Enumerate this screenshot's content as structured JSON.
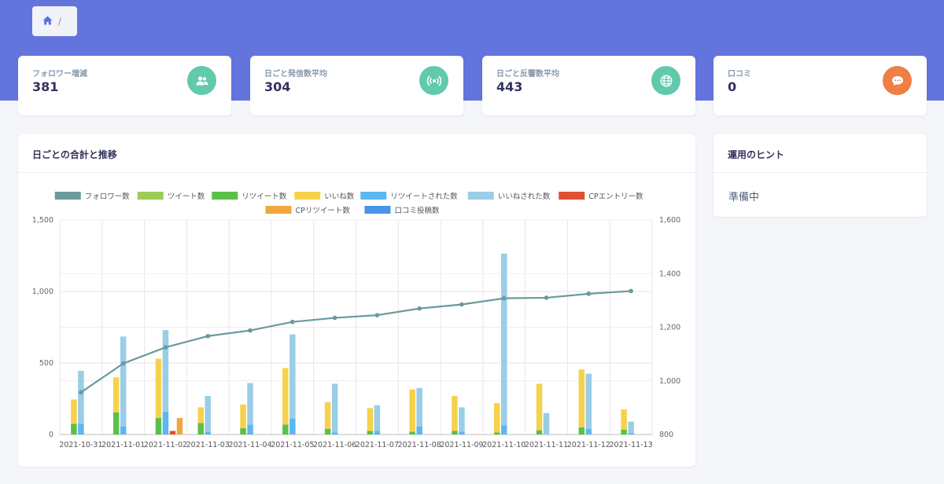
{
  "breadcrumb": {
    "home_icon": "home-icon",
    "separator": "/"
  },
  "stats": [
    {
      "label": "フォロワー増減",
      "value": "381",
      "icon": "users-icon"
    },
    {
      "label": "日ごと発信数平均",
      "value": "304",
      "icon": "broadcast-icon"
    },
    {
      "label": "日ごと反響数平均",
      "value": "443",
      "icon": "globe-icon"
    },
    {
      "label": "口コミ",
      "value": "0",
      "icon": "chat-bubble-icon"
    }
  ],
  "chart_card": {
    "title": "日ごとの合計と推移"
  },
  "hint_card": {
    "title": "運用のヒント",
    "body": "準備中"
  },
  "colors": {
    "hero": "#6375dc",
    "follower": "#6a9a9c",
    "tweet": "#9ccc56",
    "retweet": "#5bc04a",
    "like": "#f6d24b",
    "retweeted": "#5cb7f1",
    "liked": "#9acde6",
    "cp_entry": "#e05031",
    "cp_retweet": "#f0a742",
    "review": "#4b93e8"
  },
  "chart_data": {
    "type": "bar",
    "categories": [
      "2021-10-31",
      "2021-11-01",
      "2021-11-02",
      "2021-11-03",
      "2021-11-04",
      "2021-11-05",
      "2021-11-06",
      "2021-11-07",
      "2021-11-08",
      "2021-11-09",
      "2021-11-10",
      "2021-11-11",
      "2021-11-12",
      "2021-11-13"
    ],
    "y_left": {
      "min": 0,
      "max": 1500,
      "ticks": [
        "0",
        "500",
        "1,000",
        "1,500"
      ]
    },
    "y_right": {
      "min": 800,
      "max": 1600,
      "ticks": [
        "800",
        "1,000",
        "1,200",
        "1,400",
        "1,600"
      ]
    },
    "grid": true,
    "legend_position": "top",
    "series": [
      {
        "name": "フォロワー数",
        "type": "line",
        "axis": "right",
        "values": [
          957,
          1065,
          1125,
          1167,
          1188,
          1220,
          1235,
          1245,
          1270,
          1285,
          1308,
          1310,
          1325,
          1335
        ]
      },
      {
        "name": "ツイート数",
        "type": "bar",
        "stack": "a",
        "values": [
          0,
          0,
          0,
          0,
          0,
          0,
          0,
          0,
          0,
          0,
          0,
          0,
          0,
          0
        ]
      },
      {
        "name": "リツイート数",
        "type": "bar",
        "stack": "a",
        "values": [
          75,
          155,
          115,
          80,
          45,
          70,
          40,
          25,
          20,
          25,
          15,
          30,
          50,
          35
        ]
      },
      {
        "name": "いいね数",
        "type": "bar",
        "stack": "a",
        "values": [
          170,
          245,
          415,
          110,
          165,
          395,
          185,
          160,
          295,
          245,
          205,
          325,
          405,
          140
        ]
      },
      {
        "name": "リツイートされた数",
        "type": "bar",
        "stack": "b",
        "values": [
          75,
          55,
          160,
          20,
          70,
          110,
          15,
          25,
          55,
          20,
          65,
          0,
          40,
          10
        ]
      },
      {
        "name": "いいねされた数",
        "type": "bar",
        "stack": "b",
        "values": [
          370,
          630,
          570,
          250,
          290,
          590,
          340,
          180,
          270,
          170,
          1200,
          150,
          385,
          80
        ]
      },
      {
        "name": "CPエントリー数",
        "type": "bar",
        "stack": "c",
        "values": [
          0,
          0,
          25,
          0,
          0,
          0,
          0,
          0,
          0,
          0,
          0,
          0,
          0,
          0
        ]
      },
      {
        "name": "CPリツイート数",
        "type": "bar",
        "stack": "d",
        "values": [
          0,
          0,
          115,
          0,
          0,
          0,
          0,
          0,
          0,
          0,
          0,
          0,
          0,
          0
        ]
      },
      {
        "name": "口コミ投稿数",
        "type": "bar",
        "stack": "e",
        "values": [
          0,
          0,
          0,
          0,
          0,
          0,
          0,
          0,
          0,
          0,
          0,
          0,
          0,
          0
        ]
      }
    ]
  }
}
